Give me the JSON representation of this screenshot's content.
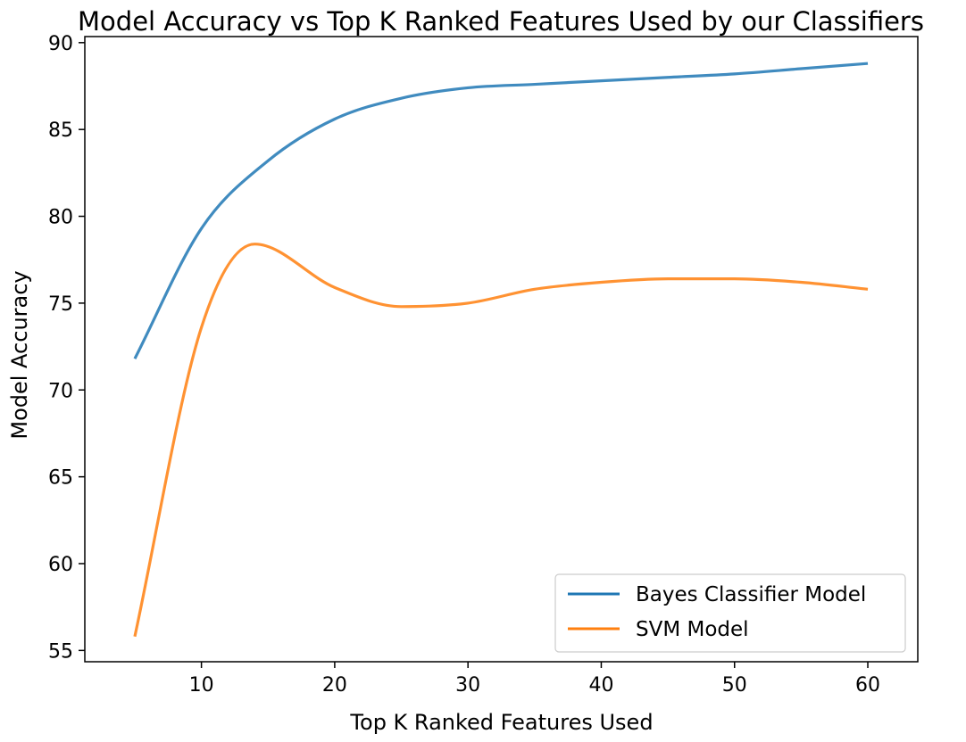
{
  "chart_data": {
    "type": "line",
    "title": "Model Accuracy vs Top K Ranked Features Used by our Classifiers",
    "xlabel": "Top K Ranked Features Used",
    "ylabel": "Model Accuracy",
    "xlim": [
      1.25,
      63.75
    ],
    "ylim": [
      54.35,
      90.35
    ],
    "xticks": [
      10,
      20,
      30,
      40,
      50,
      60
    ],
    "yticks": [
      55,
      60,
      65,
      70,
      75,
      80,
      85,
      90
    ],
    "grid": false,
    "legend_position": "lower right",
    "series": [
      {
        "name": "Bayes Classifier Model",
        "color": "#1f77b4",
        "x": [
          5,
          10,
          15,
          20,
          25,
          30,
          35,
          40,
          45,
          50,
          55,
          60
        ],
        "y": [
          71.8,
          79.3,
          83.2,
          85.6,
          86.8,
          87.4,
          87.6,
          87.8,
          88.0,
          88.2,
          88.5,
          88.8
        ]
      },
      {
        "name": "SVM Model",
        "color": "#ff7f0e",
        "x": [
          5,
          10,
          14,
          20,
          25,
          30,
          35,
          40,
          45,
          50,
          55,
          60
        ],
        "y": [
          55.8,
          73.6,
          78.4,
          75.9,
          74.8,
          75.0,
          75.8,
          76.2,
          76.4,
          76.4,
          76.2,
          75.8
        ]
      }
    ]
  }
}
